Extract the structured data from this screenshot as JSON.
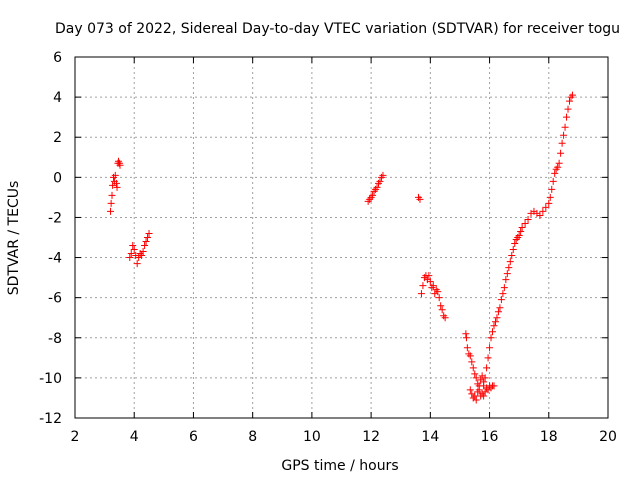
{
  "chart_data": {
    "type": "scatter",
    "title": "Day 073 of 2022, Sidereal Day-to-day VTEC variation (SDTVAR) for receiver togu",
    "xlabel": "GPS time / hours",
    "ylabel": "SDTVAR / TECUs",
    "xlim": [
      2,
      20
    ],
    "ylim": [
      -12,
      6
    ],
    "xticks": [
      2,
      4,
      6,
      8,
      10,
      12,
      14,
      16,
      18,
      20
    ],
    "yticks": [
      -12,
      -10,
      -8,
      -6,
      -4,
      -2,
      0,
      2,
      4,
      6
    ],
    "grid": true,
    "marker": "+",
    "colors": {
      "series": "#ff0000",
      "grid": "#a0a0a0",
      "axis": "#000000"
    },
    "series": [
      {
        "name": "SDTVAR",
        "x": [
          3.2,
          3.22,
          3.25,
          3.27,
          3.3,
          3.33,
          3.36,
          3.4,
          3.42,
          3.45,
          3.47,
          3.5,
          3.52,
          3.85,
          3.9,
          3.95,
          4.0,
          4.05,
          4.1,
          4.15,
          4.2,
          4.25,
          4.3,
          4.35,
          4.4,
          4.45,
          4.5,
          11.9,
          11.95,
          12.0,
          12.05,
          12.1,
          12.15,
          12.2,
          12.25,
          12.3,
          12.35,
          12.4,
          13.6,
          13.65,
          13.7,
          13.75,
          13.8,
          13.85,
          13.9,
          13.95,
          14.0,
          14.05,
          14.1,
          14.15,
          14.2,
          14.25,
          14.3,
          14.35,
          14.4,
          14.45,
          14.5,
          15.2,
          15.22,
          15.25,
          15.3,
          15.35,
          15.4,
          15.45,
          15.5,
          15.55,
          15.6,
          15.65,
          15.7,
          15.75,
          15.8,
          15.85,
          15.9,
          15.95,
          16.0,
          16.05,
          16.1,
          16.15,
          15.35,
          15.4,
          15.45,
          15.5,
          15.55,
          15.6,
          15.65,
          15.7,
          15.75,
          15.8,
          15.8,
          15.85,
          15.9,
          15.95,
          16.0,
          16.05,
          16.1,
          16.15,
          16.2,
          16.25,
          16.3,
          16.35,
          16.4,
          16.45,
          16.5,
          16.55,
          16.6,
          16.65,
          16.7,
          16.75,
          16.8,
          16.85,
          16.9,
          16.95,
          17.0,
          17.05,
          17.1,
          17.2,
          17.3,
          17.4,
          17.5,
          17.6,
          17.7,
          17.8,
          17.9,
          18.0,
          18.05,
          18.1,
          18.15,
          18.2,
          18.25,
          18.3,
          18.35,
          18.4,
          18.45,
          18.5,
          18.55,
          18.6,
          18.65,
          18.7,
          18.75,
          18.8
        ],
        "y": [
          -1.7,
          -1.3,
          -0.9,
          -0.4,
          0.0,
          -0.2,
          0.1,
          -0.3,
          -0.5,
          0.7,
          0.8,
          0.7,
          0.6,
          -4.0,
          -3.8,
          -3.4,
          -3.6,
          -3.9,
          -4.3,
          -4.0,
          -3.8,
          -3.9,
          -3.7,
          -3.4,
          -3.2,
          -3.0,
          -2.8,
          -1.2,
          -1.1,
          -1.0,
          -0.9,
          -0.7,
          -0.6,
          -0.5,
          -0.3,
          -0.2,
          0.0,
          0.1,
          -1.0,
          -1.1,
          -5.8,
          -5.4,
          -5.0,
          -4.9,
          -5.1,
          -4.9,
          -5.2,
          -5.5,
          -5.4,
          -5.8,
          -5.6,
          -5.7,
          -6.0,
          -6.4,
          -6.6,
          -6.9,
          -7.0,
          -7.8,
          -8.0,
          -8.5,
          -8.8,
          -8.9,
          -9.2,
          -9.5,
          -9.8,
          -10.0,
          -10.3,
          -10.6,
          -10.9,
          -10.8,
          -10.9,
          -10.7,
          -10.5,
          -10.6,
          -10.4,
          -10.5,
          -10.4,
          -10.4,
          -10.6,
          -10.8,
          -11.0,
          -10.9,
          -11.1,
          -10.7,
          -10.4,
          -10.1,
          -9.9,
          -10.2,
          -10.4,
          -10.0,
          -9.5,
          -9.0,
          -8.5,
          -8.0,
          -7.7,
          -7.4,
          -7.2,
          -7.0,
          -6.7,
          -6.5,
          -6.1,
          -5.8,
          -5.5,
          -5.1,
          -4.8,
          -4.5,
          -4.2,
          -3.9,
          -3.6,
          -3.3,
          -3.1,
          -3.0,
          -2.9,
          -2.7,
          -2.5,
          -2.3,
          -2.1,
          -1.8,
          -1.7,
          -1.8,
          -1.9,
          -1.7,
          -1.5,
          -1.3,
          -1.0,
          -0.6,
          -0.2,
          0.2,
          0.4,
          0.5,
          0.7,
          1.2,
          1.7,
          2.1,
          2.5,
          3.0,
          3.4,
          3.8,
          4.0,
          4.1
        ]
      }
    ]
  }
}
